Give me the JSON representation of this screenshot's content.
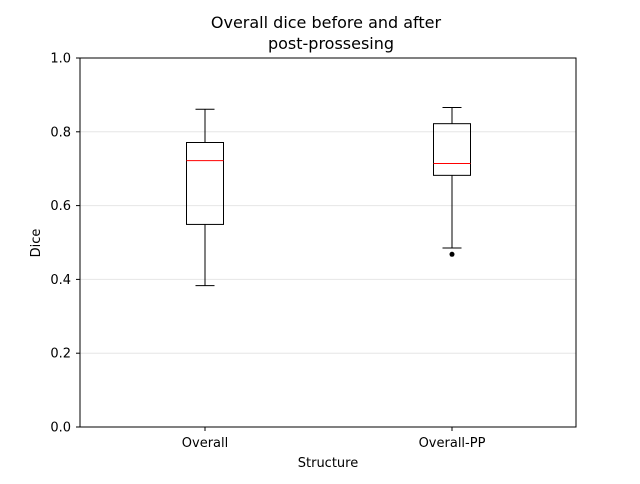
{
  "chart_data": {
    "type": "box",
    "title_line1": "Overall dice before and after",
    "title_line2": "post-prossesing",
    "xlabel": "Structure",
    "ylabel": "Dice",
    "ylim": [
      0.0,
      1.0
    ],
    "yticks": [
      "0.0",
      "0.2",
      "0.4",
      "0.6",
      "0.8",
      "1.0"
    ],
    "ytick_values": [
      0.0,
      0.2,
      0.4,
      0.6,
      0.8,
      1.0
    ],
    "grid": "horizontal",
    "categories": [
      "Overall",
      "Overall-PP"
    ],
    "boxes": [
      {
        "whisker_low": 0.383,
        "q1": 0.549,
        "median": 0.722,
        "q3": 0.771,
        "whisker_high": 0.861,
        "outliers": []
      },
      {
        "whisker_low": 0.485,
        "q1": 0.682,
        "median": 0.714,
        "q3": 0.822,
        "whisker_high": 0.866,
        "outliers": [
          0.468
        ]
      }
    ],
    "colors": {
      "box": "#000000",
      "median": "#ff0000",
      "grid": "#e6e6e6"
    }
  }
}
